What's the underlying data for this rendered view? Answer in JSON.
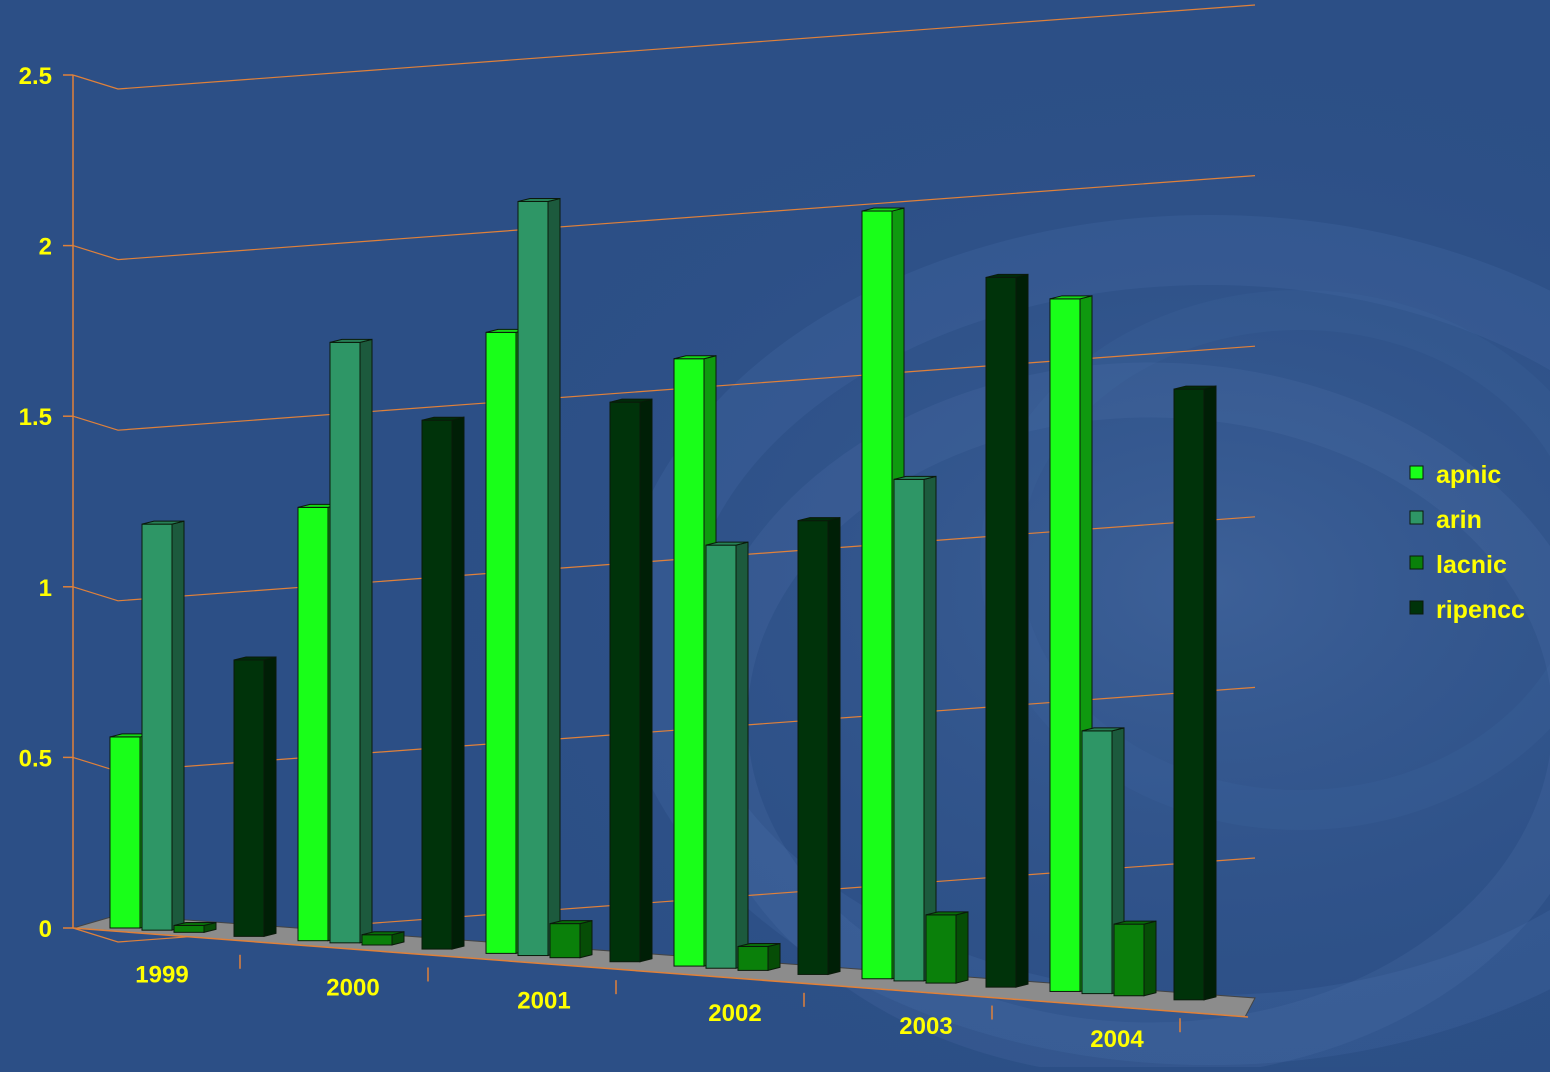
{
  "chart_data": {
    "type": "bar",
    "title": "",
    "xlabel": "",
    "ylabel": "",
    "categories": [
      "1999",
      "2000",
      "2001",
      "2002",
      "2003",
      "2004"
    ],
    "ylim": [
      0,
      2.5
    ],
    "yticks": [
      "0",
      "0.5",
      "1",
      "1.5",
      "2",
      "2.5"
    ],
    "grid": true,
    "legend_position": "right",
    "series": [
      {
        "name": "apnic",
        "color": "#19ff19",
        "values": [
          0.56,
          1.27,
          1.82,
          1.78,
          2.25,
          2.03
        ]
      },
      {
        "name": "arin",
        "color": "#2e9666",
        "values": [
          1.19,
          1.76,
          2.21,
          1.24,
          1.47,
          0.77
        ]
      },
      {
        "name": "lacnic",
        "color": "#0a800a",
        "values": [
          0.02,
          0.03,
          0.1,
          0.07,
          0.2,
          0.21
        ]
      },
      {
        "name": "ripencc",
        "color": "#00330a",
        "values": [
          0.81,
          1.55,
          1.64,
          1.33,
          2.08,
          1.79
        ]
      }
    ]
  }
}
